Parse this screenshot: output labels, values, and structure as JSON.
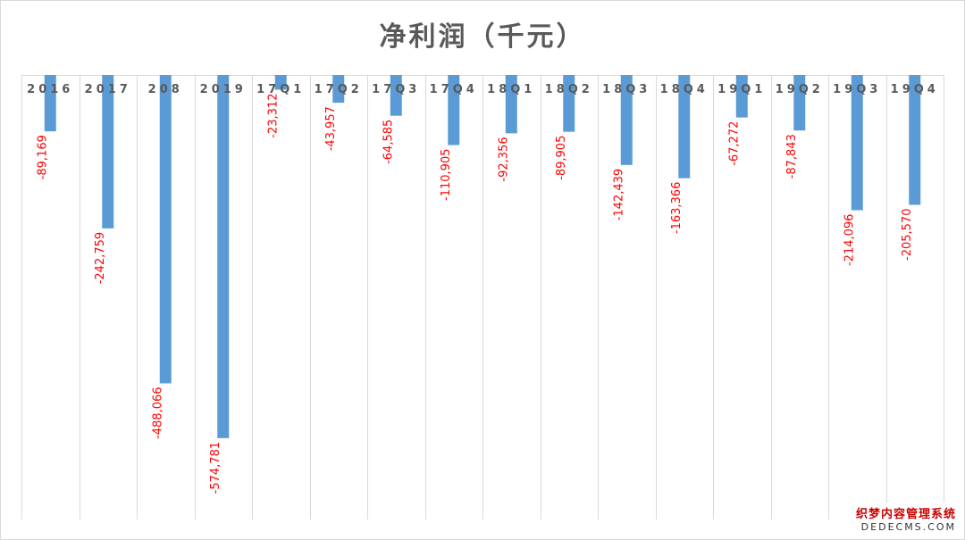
{
  "chart_data": {
    "type": "bar",
    "title": "净利润（千元）",
    "categories": [
      "2016",
      "2017",
      "208",
      "2019",
      "17Q1",
      "17Q2",
      "17Q3",
      "17Q4",
      "18Q1",
      "18Q2",
      "18Q3",
      "18Q4",
      "19Q1",
      "19Q2",
      "19Q3",
      "19Q4"
    ],
    "values": [
      -89169,
      -242759,
      -488066,
      -574781,
      -23312,
      -43957,
      -64585,
      -110905,
      -92356,
      -89905,
      -142439,
      -163366,
      -67272,
      -87843,
      -214096,
      -205570
    ],
    "value_labels": [
      "-89,169",
      "-242,759",
      "-488,066",
      "-574,781",
      "-23,312",
      "-43,957",
      "-64,585",
      "-110,905",
      "-92,356",
      "-89,905",
      "-142,439",
      "-163,366",
      "-67,272",
      "-87,843",
      "-214,096",
      "-205,570"
    ],
    "ylim": [
      -700000,
      0
    ],
    "grid": "vertical",
    "bar_color": "#5b9bd5",
    "label_color": "#ff0000"
  },
  "watermark": {
    "line1": "织梦内容管理系统",
    "line2": "DEDECMS.COM"
  }
}
